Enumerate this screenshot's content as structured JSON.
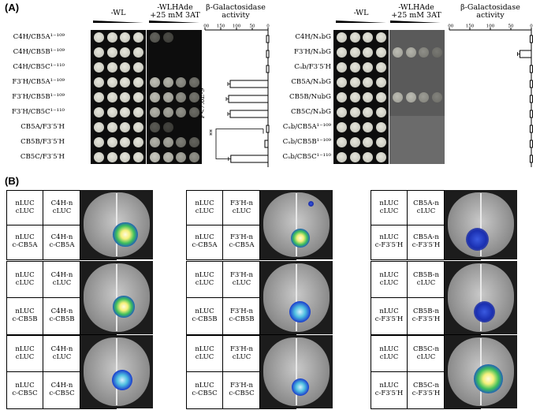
{
  "panelA": {
    "label": "(A)",
    "left": {
      "headers": {
        "wl": "-WL",
        "wlhade": "-WLHAde",
        "wlhade2": "+25 mM 3AT",
        "bgal": "β-Galactosidase",
        "bgal2": "activity"
      },
      "axis_ticks": [
        "200",
        "150",
        "100",
        "50",
        "0"
      ],
      "rows": [
        "C4H/CB5A¹⁻¹⁰⁹",
        "C4H/CB5B¹⁻¹⁰⁹",
        "C4H/CB5C¹⁻¹¹⁰",
        "F3′H/CB5A¹⁻¹⁰⁹",
        "F3′H/CB5B¹⁻¹⁰⁹",
        "F3′H/CB5C¹⁻¹¹⁰",
        "CB5A/F3′5′H",
        "CB5B/F3′5′H",
        "CB5C/F3′5′H"
      ],
      "pvalue": "P<7.6E-9",
      "stars": "**"
    },
    "right": {
      "headers": {
        "wl": "-WL",
        "wlhade": "-WLHAde",
        "wlhade2": "+25 mM 3AT",
        "bgal": "β-Galactosidase",
        "bgal2": "activity"
      },
      "axis_ticks": [
        "200",
        "150",
        "100",
        "50",
        "0"
      ],
      "rows": [
        "C4H/NₐbG",
        "F3′H/NₐbG",
        "Cᵤb/F3′5′H",
        "CB5A/NₐbG",
        "CB5B/NubG",
        "CB5C/NₐbG",
        "Cᵤb/CB5A¹⁻¹⁰⁹",
        "Cᵤb/CB5B¹⁻¹⁰⁹",
        "Cᵤb/CB5C¹⁻¹¹⁰"
      ]
    }
  },
  "chart_data": [
    {
      "type": "bar",
      "orientation": "horizontal",
      "xlim": [
        200,
        0
      ],
      "categories": [
        "C4H/CB5A1-109",
        "C4H/CB5B1-109",
        "C4H/CB5C1-110",
        "F3'H/CB5A1-109",
        "F3'H/CB5B1-109",
        "F3'H/CB5C1-110",
        "CB5A/F3'5'H",
        "CB5B/F3'5'H",
        "CB5C/F3'5'H"
      ],
      "values": [
        5,
        5,
        5,
        120,
        125,
        120,
        5,
        10,
        118
      ]
    },
    {
      "type": "bar",
      "orientation": "horizontal",
      "xlim": [
        200,
        0
      ],
      "categories": [
        "C4H/NabG",
        "F3'H/NabG",
        "Cub/F3'5'H",
        "CB5A/NabG",
        "CB5B/NubG",
        "CB5C/NabG",
        "Cub/CB5A1-109",
        "Cub/CB5B1-109",
        "Cub/CB5C1-110"
      ],
      "values": [
        3,
        28,
        3,
        3,
        3,
        3,
        3,
        3,
        3
      ]
    }
  ],
  "panelB": {
    "label": "(B)",
    "groups": [
      {
        "pairs": [
          [
            "nLUC\ncLUC",
            "C4H-n\ncLUC",
            "nLUC\nc-CB5A",
            "C4H-n\nc-CB5A"
          ],
          [
            "nLUC\ncLUC",
            "C4H-n\ncLUC",
            "nLUC\nc-CB5B",
            "C4H-n\nc-CB5B"
          ],
          [
            "nLUC\ncLUC",
            "C4H-n\ncLUC",
            "nLUC\nc-CB5C",
            "C4H-n\nc-CB5C"
          ]
        ]
      },
      {
        "pairs": [
          [
            "nLUC\ncLUC",
            "F3′H-n\ncLUC",
            "nLUC\nc-CB5A",
            "F3′H-n\nc-CB5A"
          ],
          [
            "nLUC\ncLUC",
            "F3′H-n\ncLUC",
            "nLUC\nc-CB5B",
            "F3′H-n\nc-CB5B"
          ],
          [
            "nLUC\ncLUC",
            "F3′H-n\ncLUC",
            "nLUC\nc-CB5C",
            "F3′H-n\nc-CB5C"
          ]
        ]
      },
      {
        "pairs": [
          [
            "nLUC\ncLUC",
            "CB5A-n\ncLUC",
            "nLUC\nc-F3′5′H",
            "CB5A-n\nc-F3′5′H"
          ],
          [
            "nLUC\ncLUC",
            "CB5B-n\ncLUC",
            "nLUC\nc-F3′5′H",
            "CB5B-n\nc-F3′5′H"
          ],
          [
            "nLUC\ncLUC",
            "CB5C-n\ncLUC",
            "nLUC\nc-F3′5′H",
            "CB5C-n\nc-F3′5′H"
          ]
        ]
      }
    ]
  }
}
